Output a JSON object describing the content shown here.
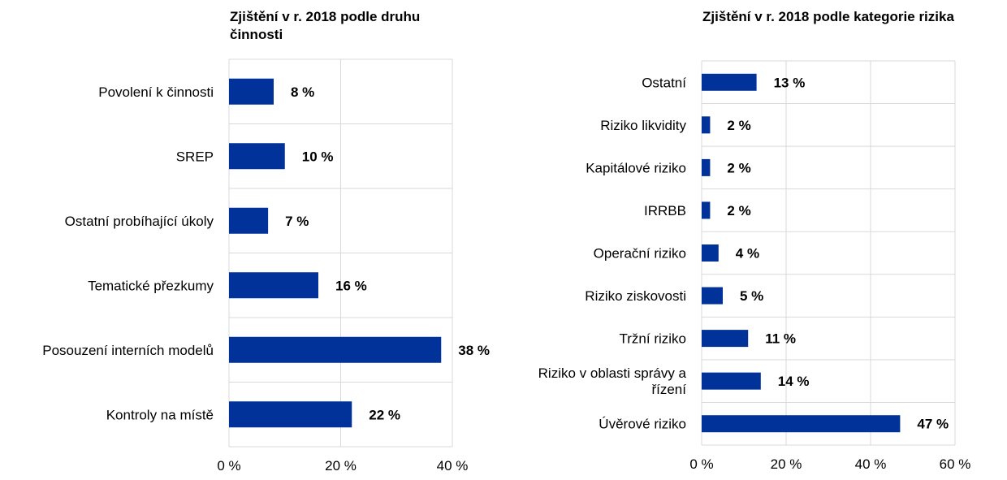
{
  "chart_data": [
    {
      "type": "bar",
      "orientation": "horizontal",
      "title": "Zjištění v r. 2018 podle druhu činnosti",
      "categories": [
        "Povolení k činnosti",
        "SREP",
        "Ostatní probíhající úkoly",
        "Tematické přezkumy",
        "Posouzení interních modelů",
        "Kontroly na místě"
      ],
      "values": [
        8,
        10,
        7,
        16,
        38,
        22
      ],
      "value_labels": [
        "8 %",
        "10 %",
        "7 %",
        "16 %",
        "38 %",
        "22 %"
      ],
      "xlim": [
        0,
        40
      ],
      "x_ticks": [
        0,
        20,
        40
      ],
      "x_tick_labels": [
        "0 %",
        "20 %",
        "40 %"
      ],
      "grid": true,
      "color": "#003299"
    },
    {
      "type": "bar",
      "orientation": "horizontal",
      "title": "Zjištění v r. 2018 podle kategorie rizika",
      "categories": [
        "Ostatní",
        "Riziko likvidity",
        "Kapitálové riziko",
        "IRRBB",
        "Operační riziko",
        "Riziko ziskovosti",
        "Tržní riziko",
        "Riziko v oblasti správy a řízení",
        "Úvěrové riziko"
      ],
      "category_lines": [
        [
          "Ostatní"
        ],
        [
          "Riziko likvidity"
        ],
        [
          "Kapitálové riziko"
        ],
        [
          "IRRBB"
        ],
        [
          "Operační riziko"
        ],
        [
          "Riziko ziskovosti"
        ],
        [
          "Tržní riziko"
        ],
        [
          "Riziko v oblasti správy a",
          "řízení"
        ],
        [
          "Úvěrové riziko"
        ]
      ],
      "values": [
        13,
        2,
        2,
        2,
        4,
        5,
        11,
        14,
        47
      ],
      "value_labels": [
        "13 %",
        "2 %",
        "2 %",
        "2 %",
        "4 %",
        "5 %",
        "11 %",
        "14 %",
        "47 %"
      ],
      "xlim": [
        0,
        60
      ],
      "x_ticks": [
        0,
        20,
        40,
        60
      ],
      "x_tick_labels": [
        "0 %",
        "20 %",
        "40 %",
        "60 %"
      ],
      "grid": true,
      "color": "#003299"
    }
  ]
}
